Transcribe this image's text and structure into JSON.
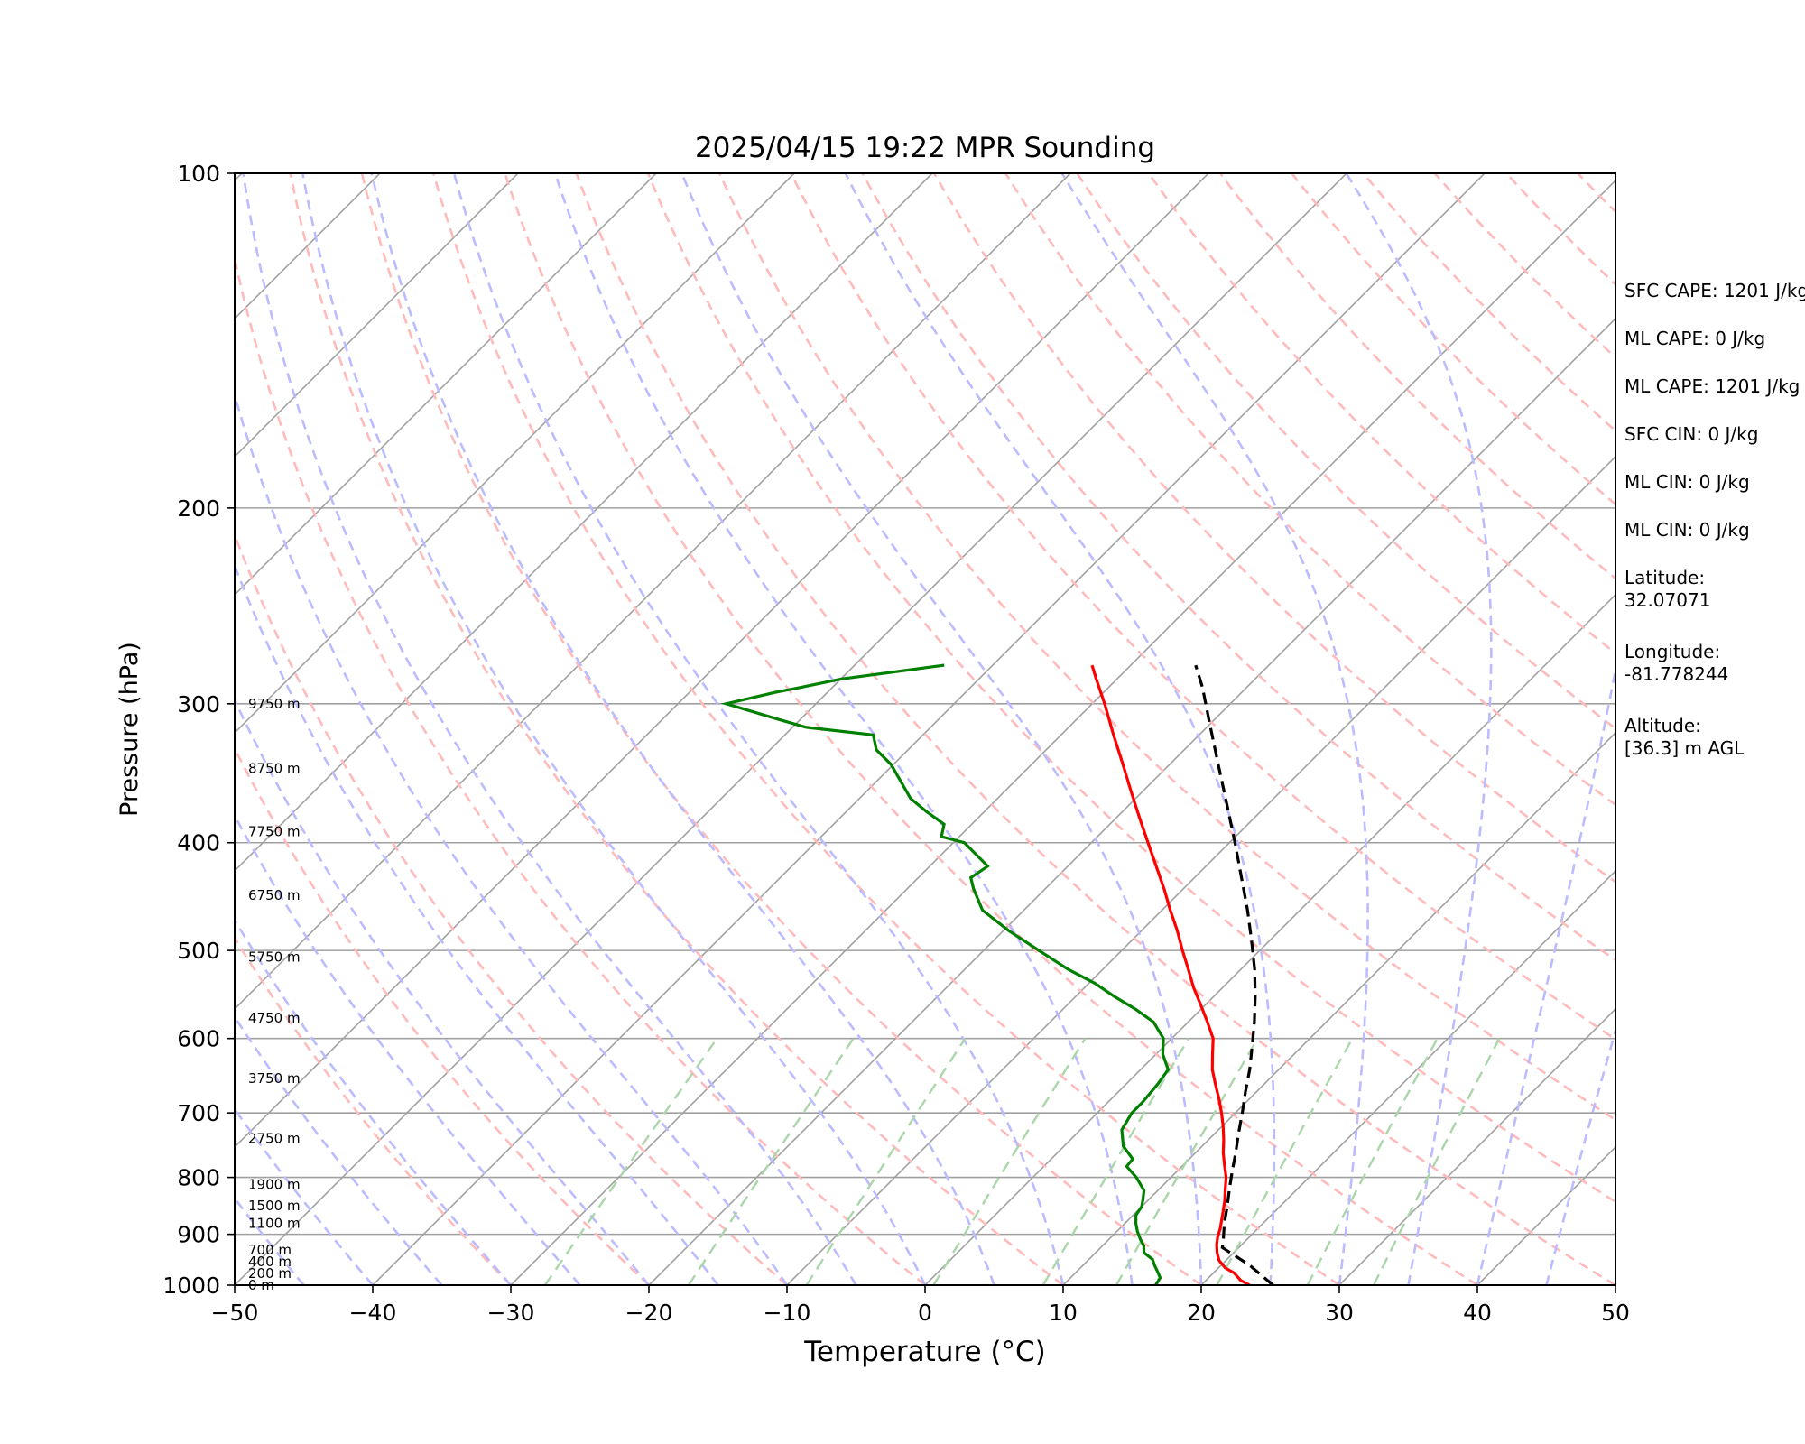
{
  "chart_data": {
    "type": "line",
    "subtype": "skew-T log-P sounding",
    "title": "2025/04/15 19:22 MPR Sounding",
    "xlabel": "Temperature (°C)",
    "ylabel": "Pressure (hPa)",
    "xlim": [
      -50,
      50
    ],
    "ylim": [
      1000,
      100
    ],
    "y_scale": "log",
    "skew_degrees": 45,
    "x_ticks": [
      -50,
      -40,
      -30,
      -20,
      -10,
      0,
      10,
      20,
      30,
      40,
      50
    ],
    "x_tick_labels": [
      "−50",
      "−40",
      "−30",
      "−20",
      "−10",
      "0",
      "10",
      "20",
      "30",
      "40",
      "50"
    ],
    "y_ticks": [
      100,
      200,
      300,
      400,
      500,
      600,
      700,
      800,
      900,
      1000
    ],
    "y_tick_labels": [
      "100",
      "200",
      "300",
      "400",
      "500",
      "600",
      "700",
      "800",
      "900",
      "1000"
    ],
    "grid": true,
    "colors": {
      "temperature": "#ff0000",
      "dewpoint": "#008000",
      "parcel": "#000000",
      "dry_adiabats": "#ffbbbb",
      "moist_adiabats": "#bbbbff",
      "mixing_ratio": "#aad6aa",
      "isotherms": "#a0a0a0"
    },
    "height_labels": [
      {
        "p": 1000,
        "label": "0 m"
      },
      {
        "p": 976,
        "label": "200 m"
      },
      {
        "p": 953,
        "label": "400 m"
      },
      {
        "p": 930,
        "label": "700 m"
      },
      {
        "p": 880,
        "label": "1100 m"
      },
      {
        "p": 848,
        "label": "1500 m"
      },
      {
        "p": 812,
        "label": "1900 m"
      },
      {
        "p": 738,
        "label": "2750 m"
      },
      {
        "p": 652,
        "label": "3750 m"
      },
      {
        "p": 575,
        "label": "4750 m"
      },
      {
        "p": 507,
        "label": "5750 m"
      },
      {
        "p": 446,
        "label": "6750 m"
      },
      {
        "p": 391,
        "label": "7750 m"
      },
      {
        "p": 343,
        "label": "8750 m"
      },
      {
        "p": 300,
        "label": "9750 m"
      }
    ],
    "series": [
      {
        "key": "temperature",
        "p": [
          1000,
          990,
          975,
          965,
          950,
          935,
          920,
          905,
          890,
          875,
          860,
          840,
          820,
          800,
          780,
          760,
          740,
          720,
          700,
          680,
          660,
          640,
          620,
          600,
          580,
          560,
          540,
          520,
          500,
          480,
          460,
          440,
          420,
          400,
          380,
          360,
          340,
          320,
          300,
          285,
          277
        ],
        "t": [
          23.5,
          22.5,
          21.5,
          20.5,
          19.5,
          18.8,
          18.2,
          17.7,
          17.3,
          16.8,
          16.3,
          15.6,
          14.8,
          14.0,
          13.0,
          12.0,
          11.1,
          10.1,
          9.0,
          7.8,
          6.5,
          5.2,
          4.1,
          3.0,
          1.4,
          -0.3,
          -2.1,
          -3.8,
          -5.6,
          -7.4,
          -9.4,
          -11.4,
          -13.6,
          -15.9,
          -18.3,
          -20.8,
          -23.4,
          -26.2,
          -29.1,
          -31.5,
          -32.8
        ]
      },
      {
        "key": "dewpoint",
        "p": [
          1000,
          985,
          975,
          960,
          948,
          935,
          922,
          910,
          895,
          880,
          865,
          850,
          838,
          822,
          800,
          782,
          770,
          750,
          725,
          700,
          685,
          660,
          640,
          620,
          600,
          580,
          565,
          550,
          535,
          520,
          500,
          480,
          460,
          440,
          430,
          420,
          400,
          395,
          385,
          375,
          365,
          350,
          340,
          330,
          320,
          315,
          310,
          300,
          293,
          290,
          285,
          277
        ],
        "t": [
          16.7,
          16.5,
          16.0,
          15.2,
          14.6,
          13.5,
          13.0,
          12.3,
          11.5,
          10.8,
          10.2,
          10.0,
          9.6,
          9.0,
          7.5,
          6.0,
          5.9,
          4.3,
          3.0,
          2.5,
          2.5,
          2.3,
          2.0,
          0.5,
          -0.6,
          -2.5,
          -4.7,
          -7.2,
          -9.6,
          -12.5,
          -16.0,
          -19.6,
          -23.0,
          -25.2,
          -26.2,
          -25.8,
          -29.2,
          -31.3,
          -32.0,
          -34.2,
          -36.3,
          -38.6,
          -40.2,
          -42.3,
          -43.6,
          -49.0,
          -51.5,
          -56.5,
          -53.8,
          -52.3,
          -50.0,
          -43.5
        ]
      },
      {
        "key": "parcel",
        "p": [
          1000,
          960,
          925,
          910,
          880,
          850,
          820,
          790,
          760,
          730,
          700,
          670,
          640,
          610,
          580,
          550,
          520,
          490,
          460,
          430,
          400,
          370,
          340,
          310,
          290,
          277
        ],
        "t": [
          25.2,
          22.1,
          18.8,
          18.3,
          17.2,
          16.2,
          15.1,
          14.0,
          12.9,
          11.7,
          10.5,
          9.2,
          7.9,
          6.4,
          4.8,
          3.0,
          1.0,
          -1.3,
          -3.8,
          -6.6,
          -9.6,
          -12.9,
          -16.5,
          -20.4,
          -23.2,
          -25.3
        ]
      }
    ],
    "mixing_ratio_ticks_visible": false
  },
  "info": {
    "sfc_cape": "SFC CAPE: 1201 J/kg",
    "ml_cape_1": "ML CAPE: 0 J/kg",
    "ml_cape_2": "ML CAPE: 1201 J/kg",
    "sfc_cin": "SFC CIN: 0 J/kg",
    "ml_cin_1": "ML CIN: 0 J/kg",
    "ml_cin_2": "ML CIN: 0 J/kg",
    "latitude_label": "Latitude:",
    "latitude_value": "32.07071",
    "longitude_label": "Longitude:",
    "longitude_value": "-81.778244",
    "altitude_label": "Altitude:",
    "altitude_value": "[36.3] m AGL"
  }
}
